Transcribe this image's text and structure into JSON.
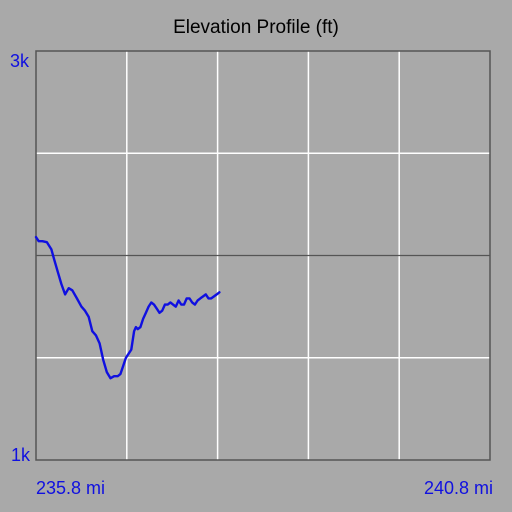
{
  "chart_data": {
    "type": "line",
    "title": "Elevation Profile (ft)",
    "xlabel": "",
    "ylabel": "",
    "xlim": [
      235.8,
      240.8
    ],
    "ylim": [
      1000,
      3000
    ],
    "x_tick_labels": [
      "235.8 mi",
      "240.8 mi"
    ],
    "y_tick_labels": [
      "3k",
      "1k"
    ],
    "grid": true,
    "colors": {
      "background": "#a9a9a9",
      "line": "#1010e0",
      "grid": "#ffffff",
      "midline": "#555555",
      "frame": "#555555",
      "tick_text": "#1010e0",
      "title_text": "#000000"
    },
    "series": [
      {
        "x": [
          235.8,
          235.83,
          235.87,
          235.92,
          235.97,
          236.0,
          236.04,
          236.08,
          236.12,
          236.16,
          236.2,
          236.25,
          236.3,
          236.34,
          236.38,
          236.42,
          236.46,
          236.5,
          236.54,
          236.58,
          236.62,
          236.66,
          236.7,
          236.73,
          236.76,
          236.79,
          236.82,
          236.85,
          236.88,
          236.9,
          236.92,
          236.95,
          236.98,
          237.01,
          237.04,
          237.07,
          237.1,
          237.13,
          237.16,
          237.19,
          237.22,
          237.25,
          237.28,
          237.31,
          237.34,
          237.37,
          237.4,
          237.43,
          237.46,
          237.49,
          237.52,
          237.55,
          237.58,
          237.61,
          237.64,
          237.67,
          237.7,
          237.73,
          237.76,
          237.79,
          237.82
        ],
        "y": [
          2090,
          2070,
          2070,
          2065,
          2030,
          1980,
          1920,
          1860,
          1810,
          1840,
          1830,
          1790,
          1750,
          1730,
          1700,
          1630,
          1610,
          1570,
          1490,
          1430,
          1400,
          1410,
          1410,
          1420,
          1460,
          1500,
          1520,
          1540,
          1630,
          1650,
          1640,
          1650,
          1690,
          1720,
          1750,
          1770,
          1760,
          1740,
          1720,
          1730,
          1760,
          1760,
          1770,
          1760,
          1750,
          1780,
          1760,
          1760,
          1790,
          1790,
          1770,
          1760,
          1780,
          1790,
          1800,
          1810,
          1790,
          1790,
          1800,
          1810,
          1820
        ]
      }
    ]
  }
}
